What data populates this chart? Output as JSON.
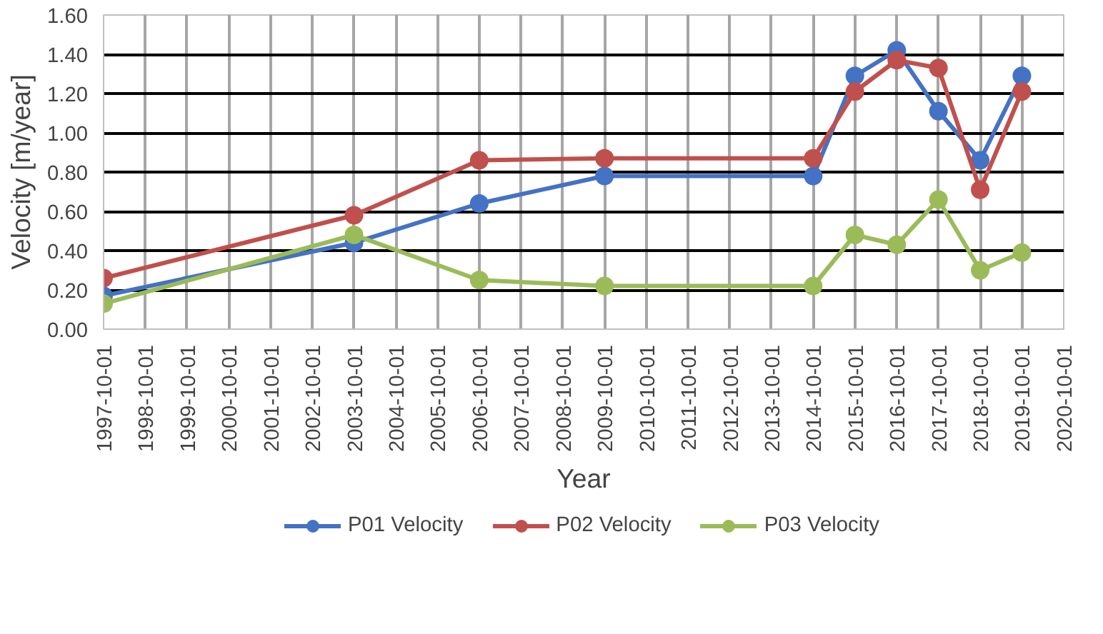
{
  "chart_data": {
    "type": "line",
    "xlabel": "Year",
    "ylabel": "Velocity [m/year]",
    "x": [
      "1997-10-01",
      "2003-10-01",
      "2006-10-01",
      "2009-10-01",
      "2014-10-01",
      "2015-10-01",
      "2016-10-01",
      "2017-10-01",
      "2018-10-01",
      "2019-10-01"
    ],
    "series": [
      {
        "name": "P01 Velocity",
        "color": "#4472c4",
        "values": [
          0.17,
          0.44,
          0.64,
          0.78,
          0.78,
          1.29,
          1.42,
          1.11,
          0.86,
          1.29
        ]
      },
      {
        "name": "P02 Velocity",
        "color": "#c0504d",
        "values": [
          0.26,
          0.58,
          0.86,
          0.87,
          0.87,
          1.21,
          1.37,
          1.33,
          0.71,
          1.21
        ]
      },
      {
        "name": "P03 Velocity",
        "color": "#9bbb59",
        "values": [
          0.13,
          0.48,
          0.25,
          0.22,
          0.22,
          0.48,
          0.43,
          0.66,
          0.3,
          0.39
        ]
      }
    ],
    "xlim": [
      "1997-10-01",
      "2020-10-01"
    ],
    "xticks": [
      "1997-10-01",
      "1998-10-01",
      "1999-10-01",
      "2000-10-01",
      "2001-10-01",
      "2002-10-01",
      "2003-10-01",
      "2004-10-01",
      "2005-10-01",
      "2006-10-01",
      "2007-10-01",
      "2008-10-01",
      "2009-10-01",
      "2010-10-01",
      "2011-10-01",
      "2012-10-01",
      "2013-10-01",
      "2014-10-01",
      "2015-10-01",
      "2016-10-01",
      "2017-10-01",
      "2018-10-01",
      "2019-10-01",
      "2020-10-01"
    ],
    "ylim": [
      0,
      1.6
    ],
    "yticks": [
      {
        "value": 0,
        "label": "0.00"
      },
      {
        "value": 0.2,
        "label": "0.20"
      },
      {
        "value": 0.4,
        "label": "0.40"
      },
      {
        "value": 0.6,
        "label": "0.60"
      },
      {
        "value": 0.8,
        "label": "0.80"
      },
      {
        "value": 1.0,
        "label": "1.00"
      },
      {
        "value": 1.2,
        "label": "1.20"
      },
      {
        "value": 1.4,
        "label": "1.40"
      },
      {
        "value": 1.6,
        "label": "1.60"
      }
    ],
    "grid": true,
    "legend": "bottom",
    "marker": "circle",
    "line_style": "solid"
  }
}
